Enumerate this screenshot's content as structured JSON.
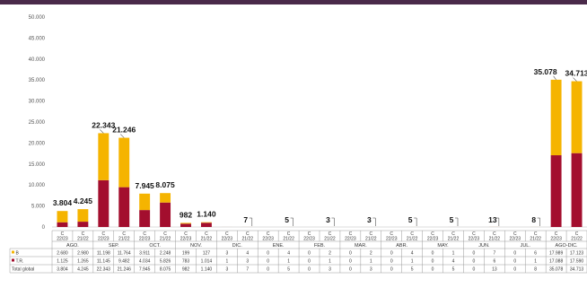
{
  "chart_data": {
    "type": "bar",
    "stacked": true,
    "ylim": [
      0,
      50000
    ],
    "yticks": [
      "0",
      "5.000",
      "10.000",
      "15.000",
      "20.000",
      "25.000",
      "30.000",
      "35.000",
      "40.000",
      "45.000",
      "50.000"
    ],
    "ytick_values": [
      0,
      5000,
      10000,
      15000,
      20000,
      25000,
      30000,
      35000,
      40000,
      45000,
      50000
    ],
    "grid": false,
    "colors": {
      "B": "#f5b400",
      "T.R.": "#a30e2e"
    },
    "groups": [
      {
        "month": "AGO.",
        "bars": [
          {
            "c": "C",
            "period": "22/23",
            "B": 2680,
            "TR": 1125,
            "total": 3804,
            "B_label": "2.680",
            "TR_label": "1.125",
            "total_label": "3.804",
            "top_label": "3.804"
          },
          {
            "c": "C",
            "period": "21/22",
            "B": 2980,
            "TR": 1265,
            "total": 4245,
            "B_label": "2.980",
            "TR_label": "1.265",
            "total_label": "4.245",
            "top_label": "4.245"
          }
        ]
      },
      {
        "month": "SEP.",
        "bars": [
          {
            "c": "C",
            "period": "22/23",
            "B": 11198,
            "TR": 11145,
            "total": 22343,
            "B_label": "11.198",
            "TR_label": "11.145",
            "total_label": "22.343",
            "top_label": "22.343"
          },
          {
            "c": "C",
            "period": "21/22",
            "B": 11764,
            "TR": 9482,
            "total": 21246,
            "B_label": "11.764",
            "TR_label": "9.482",
            "total_label": "21.246",
            "top_label": "21.246"
          }
        ]
      },
      {
        "month": "OCT.",
        "bars": [
          {
            "c": "C",
            "period": "22/23",
            "B": 3911,
            "TR": 4034,
            "total": 7945,
            "B_label": "3.911",
            "TR_label": "4.034",
            "total_label": "7.945",
            "top_label": "7.945"
          },
          {
            "c": "C",
            "period": "21/22",
            "B": 2248,
            "TR": 5826,
            "total": 8075,
            "B_label": "2.248",
            "TR_label": "5.826",
            "total_label": "8.075",
            "top_label": "8.075"
          }
        ]
      },
      {
        "month": "NOV.",
        "bars": [
          {
            "c": "C",
            "period": "22/23",
            "B": 199,
            "TR": 783,
            "total": 982,
            "B_label": "199",
            "TR_label": "783",
            "total_label": "982",
            "top_label": "982"
          },
          {
            "c": "C",
            "period": "21/22",
            "B": 127,
            "TR": 1014,
            "total": 1140,
            "B_label": "127",
            "TR_label": "1.014",
            "total_label": "1.140",
            "top_label": "1.140"
          }
        ]
      },
      {
        "month": "DIC.",
        "bars": [
          {
            "c": "C",
            "period": "22/23",
            "B": 3,
            "TR": 1,
            "total": 3,
            "B_label": "3",
            "TR_label": "1",
            "total_label": "3",
            "top_label": ""
          },
          {
            "c": "C",
            "period": "21/22",
            "B": 4,
            "TR": 3,
            "total": 7,
            "B_label": "4",
            "TR_label": "3",
            "total_label": "7",
            "top_label": "7"
          }
        ]
      },
      {
        "month": "ENE.",
        "bars": [
          {
            "c": "C",
            "period": "22/23",
            "B": 0,
            "TR": 0,
            "total": 0,
            "B_label": "0",
            "TR_label": "0",
            "total_label": "0",
            "top_label": ""
          },
          {
            "c": "C",
            "period": "21/22",
            "B": 4,
            "TR": 1,
            "total": 5,
            "B_label": "4",
            "TR_label": "1",
            "total_label": "5",
            "top_label": "5"
          }
        ]
      },
      {
        "month": "FEB.",
        "bars": [
          {
            "c": "C",
            "period": "22/23",
            "B": 0,
            "TR": 0,
            "total": 0,
            "B_label": "0",
            "TR_label": "0",
            "total_label": "0",
            "top_label": ""
          },
          {
            "c": "C",
            "period": "21/22",
            "B": 2,
            "TR": 1,
            "total": 3,
            "B_label": "2",
            "TR_label": "1",
            "total_label": "3",
            "top_label": "3"
          }
        ]
      },
      {
        "month": "MAR.",
        "bars": [
          {
            "c": "C",
            "period": "22/23",
            "B": 0,
            "TR": 0,
            "total": 0,
            "B_label": "0",
            "TR_label": "0",
            "total_label": "0",
            "top_label": ""
          },
          {
            "c": "C",
            "period": "21/22",
            "B": 2,
            "TR": 1,
            "total": 3,
            "B_label": "2",
            "TR_label": "1",
            "total_label": "3",
            "top_label": "3"
          }
        ]
      },
      {
        "month": "ABR.",
        "bars": [
          {
            "c": "C",
            "period": "22/23",
            "B": 0,
            "TR": 0,
            "total": 0,
            "B_label": "0",
            "TR_label": "0",
            "total_label": "0",
            "top_label": ""
          },
          {
            "c": "C",
            "period": "21/22",
            "B": 4,
            "TR": 1,
            "total": 5,
            "B_label": "4",
            "TR_label": "1",
            "total_label": "5",
            "top_label": "5"
          }
        ]
      },
      {
        "month": "MAY.",
        "bars": [
          {
            "c": "C",
            "period": "22/23",
            "B": 0,
            "TR": 0,
            "total": 0,
            "B_label": "0",
            "TR_label": "0",
            "total_label": "0",
            "top_label": ""
          },
          {
            "c": "C",
            "period": "21/22",
            "B": 1,
            "TR": 4,
            "total": 5,
            "B_label": "1",
            "TR_label": "4",
            "total_label": "5",
            "top_label": "5"
          }
        ]
      },
      {
        "month": "JUN.",
        "bars": [
          {
            "c": "C",
            "period": "22/23",
            "B": 0,
            "TR": 0,
            "total": 0,
            "B_label": "0",
            "TR_label": "0",
            "total_label": "0",
            "top_label": ""
          },
          {
            "c": "C",
            "period": "21/22",
            "B": 7,
            "TR": 6,
            "total": 13,
            "B_label": "7",
            "TR_label": "6",
            "total_label": "13",
            "top_label": "13"
          }
        ]
      },
      {
        "month": "JUL.",
        "bars": [
          {
            "c": "C",
            "period": "22/23",
            "B": 0,
            "TR": 0,
            "total": 0,
            "B_label": "0",
            "TR_label": "0",
            "total_label": "0",
            "top_label": ""
          },
          {
            "c": "C",
            "period": "21/22",
            "B": 6,
            "TR": 1,
            "total": 8,
            "B_label": "6",
            "TR_label": "1",
            "total_label": "8",
            "top_label": "8"
          }
        ]
      },
      {
        "month": "AGO-DIC.",
        "bars": [
          {
            "c": "C",
            "period": "22/23",
            "B": 17989,
            "TR": 17088,
            "total": 35078,
            "B_label": "17.989",
            "TR_label": "17.088",
            "total_label": "35.078",
            "top_label": "35.078"
          },
          {
            "c": "C",
            "period": "21/22",
            "B": 17123,
            "TR": 17590,
            "total": 34713,
            "B_label": "17.123",
            "TR_label": "17.590",
            "total_label": "34.713",
            "top_label": "34.713"
          }
        ]
      }
    ],
    "table_rows": [
      {
        "key": "B",
        "label": "B",
        "marker": true
      },
      {
        "key": "TR",
        "label": "T.R.",
        "marker": true
      },
      {
        "key": "total",
        "label": "Total global",
        "marker": false
      }
    ]
  }
}
